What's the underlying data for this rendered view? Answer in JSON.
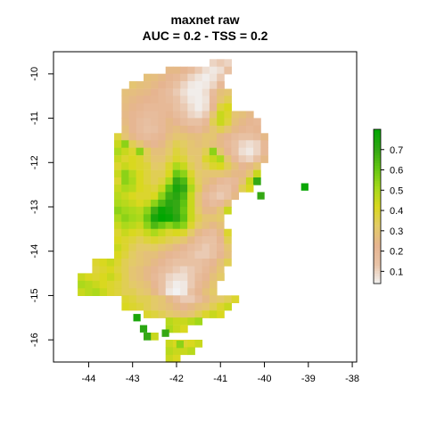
{
  "chart_data": {
    "type": "heatmap",
    "title": "maxnet raw",
    "subtitle": "AUC = 0.2 - TSS = 0.2",
    "xlabel": "",
    "ylabel": "",
    "xlim": [
      -44.8,
      -37.9
    ],
    "ylim": [
      -16.5,
      -9.5
    ],
    "x_ticks": [
      -44,
      -43,
      -42,
      -41,
      -40,
      -39,
      -38
    ],
    "y_ticks": [
      -16,
      -15,
      -14,
      -13,
      -12,
      -11,
      -10
    ],
    "x_tick_labels": [
      "-44",
      "-43",
      "-42",
      "-41",
      "-40",
      "-39",
      "-38"
    ],
    "y_tick_labels": [
      "-16",
      "-15",
      "-14",
      "-13",
      "-12",
      "-11",
      "-10"
    ],
    "grid": false,
    "legend": {
      "placement": "right",
      "range": [
        0.04,
        0.8
      ],
      "ticks": [
        0.1,
        0.2,
        0.3,
        0.4,
        0.5,
        0.6,
        0.7
      ],
      "tick_labels": [
        "0.1",
        "0.2",
        "0.3",
        "0.4",
        "0.5",
        "0.6",
        "0.7"
      ],
      "palette": [
        "#f2f2f2",
        "#e8c3a7",
        "#e6b490",
        "#e3cb67",
        "#d9d81f",
        "#a4d91a",
        "#63c612",
        "#31a614",
        "#00a600"
      ]
    },
    "raster": {
      "cell_size_deg": 0.1667,
      "note_values": "estimated suitability per cell, west-to-east rows from north to south",
      "rows": [
        {
          "lat": -9.75,
          "lon_start": -41.25,
          "values": [
            0.1,
            0.12,
            0.1
          ]
        },
        {
          "lat": -9.92,
          "lon_start": -42.25,
          "values": [
            0.25,
            0.25,
            0.22,
            0.18,
            0.12,
            0.08,
            0.06,
            0.08,
            0.15
          ]
        },
        {
          "lat": -10.08,
          "lon_start": -42.75,
          "values": [
            0.28,
            0.27,
            0.25,
            0.22,
            0.2,
            0.15,
            0.1,
            0.07,
            0.05,
            0.07,
            0.12
          ]
        },
        {
          "lat": -10.25,
          "lon_start": -43.08,
          "values": [
            0.3,
            0.28,
            0.27,
            0.25,
            0.23,
            0.2,
            0.15,
            0.1,
            0.06,
            0.05,
            0.06,
            0.1,
            0.2
          ]
        },
        {
          "lat": -10.42,
          "lon_start": -43.25,
          "values": [
            0.28,
            0.27,
            0.26,
            0.25,
            0.23,
            0.2,
            0.17,
            0.12,
            0.08,
            0.05,
            0.05,
            0.08,
            0.18,
            0.28,
            0.3
          ]
        },
        {
          "lat": -10.58,
          "lon_start": -43.25,
          "values": [
            0.27,
            0.25,
            0.24,
            0.23,
            0.22,
            0.2,
            0.18,
            0.14,
            0.1,
            0.06,
            0.05,
            0.07,
            0.2,
            0.3,
            0.35
          ]
        },
        {
          "lat": -10.75,
          "lon_start": -43.25,
          "values": [
            0.26,
            0.24,
            0.22,
            0.2,
            0.2,
            0.2,
            0.2,
            0.15,
            0.12,
            0.08,
            0.05,
            0.08,
            0.22,
            0.38,
            0.42
          ]
        },
        {
          "lat": -10.92,
          "lon_start": -43.25,
          "values": [
            0.25,
            0.22,
            0.2,
            0.18,
            0.18,
            0.2,
            0.22,
            0.18,
            0.14,
            0.1,
            0.08,
            0.12,
            0.3,
            0.45,
            0.4,
            0.3,
            0.28,
            0.25
          ]
        },
        {
          "lat": -11.08,
          "lon_start": -43.25,
          "values": [
            0.26,
            0.22,
            0.18,
            0.16,
            0.18,
            0.2,
            0.25,
            0.22,
            0.18,
            0.15,
            0.15,
            0.2,
            0.35,
            0.45,
            0.38,
            0.28,
            0.25,
            0.22,
            0.2
          ]
        },
        {
          "lat": -11.25,
          "lon_start": -43.25,
          "values": [
            0.28,
            0.22,
            0.18,
            0.15,
            0.16,
            0.2,
            0.25,
            0.27,
            0.25,
            0.22,
            0.2,
            0.25,
            0.3,
            0.35,
            0.3,
            0.25,
            0.22,
            0.2,
            0.22
          ]
        },
        {
          "lat": -11.42,
          "lon_start": -43.42,
          "values": [
            0.38,
            0.3,
            0.25,
            0.2,
            0.18,
            0.2,
            0.22,
            0.27,
            0.3,
            0.3,
            0.28,
            0.27,
            0.3,
            0.3,
            0.25,
            0.22,
            0.18,
            0.15,
            0.15,
            0.18,
            0.25
          ]
        },
        {
          "lat": -11.58,
          "lon_start": -43.42,
          "values": [
            0.45,
            0.55,
            0.35,
            0.3,
            0.25,
            0.22,
            0.25,
            0.3,
            0.35,
            0.33,
            0.3,
            0.28,
            0.3,
            0.28,
            0.25,
            0.2,
            0.15,
            0.1,
            0.08,
            0.1,
            0.2
          ]
        },
        {
          "lat": -11.75,
          "lon_start": -43.42,
          "values": [
            0.5,
            0.45,
            0.4,
            0.55,
            0.35,
            0.28,
            0.28,
            0.32,
            0.38,
            0.35,
            0.3,
            0.3,
            0.35,
            0.55,
            0.3,
            0.22,
            0.15,
            0.08,
            0.06,
            0.1,
            0.2
          ]
        },
        {
          "lat": -11.92,
          "lon_start": -43.42,
          "values": [
            0.45,
            0.4,
            0.42,
            0.4,
            0.35,
            0.3,
            0.3,
            0.35,
            0.4,
            0.38,
            0.32,
            0.3,
            0.4,
            0.45,
            0.5,
            0.3,
            0.2,
            0.12,
            0.1,
            0.15,
            0.25
          ]
        },
        {
          "lat": -12.08,
          "lon_start": -43.42,
          "values": [
            0.4,
            0.45,
            0.42,
            0.4,
            0.38,
            0.32,
            0.33,
            0.4,
            0.5,
            0.45,
            0.35,
            0.3,
            0.35,
            0.4,
            0.42,
            0.35,
            0.28,
            0.22,
            0.25,
            0.3
          ]
        },
        {
          "lat": -12.25,
          "lon_start": -43.42,
          "values": [
            0.45,
            0.55,
            0.48,
            0.42,
            0.38,
            0.35,
            0.35,
            0.42,
            0.6,
            0.55,
            0.4,
            0.32,
            0.3,
            0.3,
            0.3,
            0.28,
            0.25,
            0.25,
            0.3,
            0.45
          ]
        },
        {
          "lat": -12.42,
          "lon_start": -43.42,
          "values": [
            0.4,
            0.55,
            0.5,
            0.42,
            0.38,
            0.35,
            0.38,
            0.5,
            0.7,
            0.65,
            0.45,
            0.33,
            0.28,
            0.25,
            0.2,
            0.18,
            0.2,
            0.28,
            0.45,
            0.7
          ]
        },
        {
          "lat": -12.58,
          "lon_start": -43.42,
          "values": [
            0.45,
            0.5,
            0.48,
            0.42,
            0.4,
            0.38,
            0.45,
            0.62,
            0.75,
            0.7,
            0.5,
            0.35,
            0.25,
            0.2,
            0.15,
            0.15,
            0.22,
            0.35,
            0.42
          ]
        },
        {
          "lat": -12.75,
          "lon_start": -43.42,
          "values": [
            0.48,
            0.45,
            0.42,
            0.4,
            0.4,
            0.42,
            0.55,
            0.68,
            0.72,
            0.65,
            0.45,
            0.3,
            0.2,
            0.15,
            0.12,
            0.15,
            0.25
          ]
        },
        {
          "lat": -12.92,
          "lon_start": -43.42,
          "values": [
            0.5,
            0.48,
            0.45,
            0.42,
            0.45,
            0.55,
            0.65,
            0.72,
            0.7,
            0.62,
            0.45,
            0.3,
            0.22,
            0.18,
            0.2,
            0.28
          ]
        },
        {
          "lat": -13.08,
          "lon_start": -43.42,
          "values": [
            0.55,
            0.52,
            0.5,
            0.48,
            0.55,
            0.68,
            0.78,
            0.75,
            0.7,
            0.6,
            0.45,
            0.32,
            0.25,
            0.25,
            0.3,
            0.45
          ]
        },
        {
          "lat": -13.25,
          "lon_start": -43.42,
          "values": [
            0.5,
            0.55,
            0.52,
            0.5,
            0.6,
            0.75,
            0.8,
            0.78,
            0.72,
            0.62,
            0.45,
            0.35,
            0.3,
            0.3,
            0.32
          ]
        },
        {
          "lat": -13.42,
          "lon_start": -43.42,
          "values": [
            0.45,
            0.5,
            0.48,
            0.45,
            0.55,
            0.65,
            0.6,
            0.55,
            0.6,
            0.55,
            0.4,
            0.32,
            0.28,
            0.25,
            0.28
          ]
        },
        {
          "lat": -13.58,
          "lon_start": -43.42,
          "values": [
            0.4,
            0.45,
            0.42,
            0.4,
            0.45,
            0.5,
            0.45,
            0.4,
            0.42,
            0.4,
            0.32,
            0.25,
            0.2,
            0.18,
            0.25,
            0.4
          ]
        },
        {
          "lat": -13.75,
          "lon_start": -43.42,
          "values": [
            0.42,
            0.4,
            0.38,
            0.35,
            0.38,
            0.4,
            0.38,
            0.35,
            0.33,
            0.3,
            0.25,
            0.18,
            0.15,
            0.15,
            0.22,
            0.35
          ]
        },
        {
          "lat": -13.92,
          "lon_start": -43.42,
          "values": [
            0.45,
            0.4,
            0.35,
            0.32,
            0.32,
            0.33,
            0.3,
            0.28,
            0.25,
            0.22,
            0.18,
            0.15,
            0.12,
            0.15,
            0.2,
            0.3
          ]
        },
        {
          "lat": -14.08,
          "lon_start": -43.42,
          "values": [
            0.42,
            0.38,
            0.33,
            0.3,
            0.28,
            0.28,
            0.25,
            0.22,
            0.2,
            0.18,
            0.15,
            0.12,
            0.12,
            0.15,
            0.22,
            0.28
          ]
        },
        {
          "lat": -14.25,
          "lon_start": -43.92,
          "values": [
            0.4,
            0.42,
            0.45,
            0.4,
            0.35,
            0.32,
            0.3,
            0.28,
            0.25,
            0.22,
            0.18,
            0.15,
            0.15,
            0.15,
            0.15,
            0.18,
            0.22,
            0.28,
            0.35
          ]
        },
        {
          "lat": -14.42,
          "lon_start": -43.92,
          "values": [
            0.38,
            0.4,
            0.42,
            0.38,
            0.35,
            0.3,
            0.28,
            0.25,
            0.22,
            0.18,
            0.15,
            0.12,
            0.1,
            0.12,
            0.15,
            0.2,
            0.25,
            0.3
          ]
        },
        {
          "lat": -14.58,
          "lon_start": -44.25,
          "values": [
            0.45,
            0.42,
            0.4,
            0.42,
            0.45,
            0.4,
            0.35,
            0.3,
            0.28,
            0.25,
            0.2,
            0.15,
            0.1,
            0.08,
            0.08,
            0.12,
            0.18,
            0.22,
            0.28,
            0.32
          ]
        },
        {
          "lat": -14.75,
          "lon_start": -44.25,
          "values": [
            0.5,
            0.48,
            0.45,
            0.42,
            0.4,
            0.38,
            0.35,
            0.32,
            0.3,
            0.28,
            0.22,
            0.15,
            0.08,
            0.05,
            0.06,
            0.12,
            0.2,
            0.25,
            0.3
          ]
        },
        {
          "lat": -14.92,
          "lon_start": -44.25,
          "values": [
            0.45,
            0.48,
            0.5,
            0.45,
            0.4,
            0.38,
            0.35,
            0.35,
            0.32,
            0.3,
            0.25,
            0.15,
            0.06,
            0.04,
            0.06,
            0.15,
            0.22,
            0.28,
            0.32
          ]
        },
        {
          "lat": -15.08,
          "lon_start": -43.25,
          "values": [
            0.4,
            0.38,
            0.35,
            0.35,
            0.32,
            0.3,
            0.25,
            0.18,
            0.12,
            0.12,
            0.18,
            0.25,
            0.3,
            0.32,
            0.35,
            0.4
          ]
        },
        {
          "lat": -15.25,
          "lon_start": -43.25,
          "values": [
            0.42,
            0.4,
            0.38,
            0.35,
            0.32,
            0.3,
            0.28,
            0.25,
            0.22,
            0.25,
            0.28,
            0.3,
            0.35,
            0.4,
            0.45
          ]
        },
        {
          "lat": -15.42,
          "lon_start": -42.75,
          "values": [
            0.4,
            0.38,
            0.35,
            0.32,
            0.3,
            0.28,
            0.3,
            0.35,
            0.4,
            0.45,
            0.42
          ]
        },
        {
          "lat": -15.58,
          "lon_start": -42.25,
          "values": [
            0.48,
            0.45,
            0.45,
            0.48,
            0.52
          ]
        },
        {
          "lat": -15.75,
          "lon_start": -42.25,
          "values": [
            0.5,
            0.45,
            0.42
          ]
        },
        {
          "lat": -15.92,
          "lon_start": -42.75,
          "values": [
            0.7,
            0.45
          ]
        },
        {
          "lat": -16.08,
          "lon_start": -42.25,
          "values": [
            0.45,
            0.42,
            0.4,
            0.42,
            0.45
          ]
        },
        {
          "lat": -16.25,
          "lon_start": -42.25,
          "values": [
            0.48,
            0.45,
            0.45,
            0.48
          ]
        },
        {
          "lat": -16.42,
          "lon_start": -42.25,
          "values": [
            0.45,
            0.42
          ]
        }
      ],
      "points": [
        {
          "lon": -42.9,
          "lat": -15.5,
          "value": 0.75
        },
        {
          "lon": -42.75,
          "lat": -15.75,
          "value": 0.72
        },
        {
          "lon": -42.25,
          "lat": -15.85,
          "value": 0.7
        },
        {
          "lon": -41.92,
          "lat": -16.1,
          "value": 0.55
        },
        {
          "lon": -40.08,
          "lat": -12.75,
          "value": 0.7
        },
        {
          "lon": -39.08,
          "lat": -12.55,
          "value": 0.78
        }
      ]
    }
  }
}
